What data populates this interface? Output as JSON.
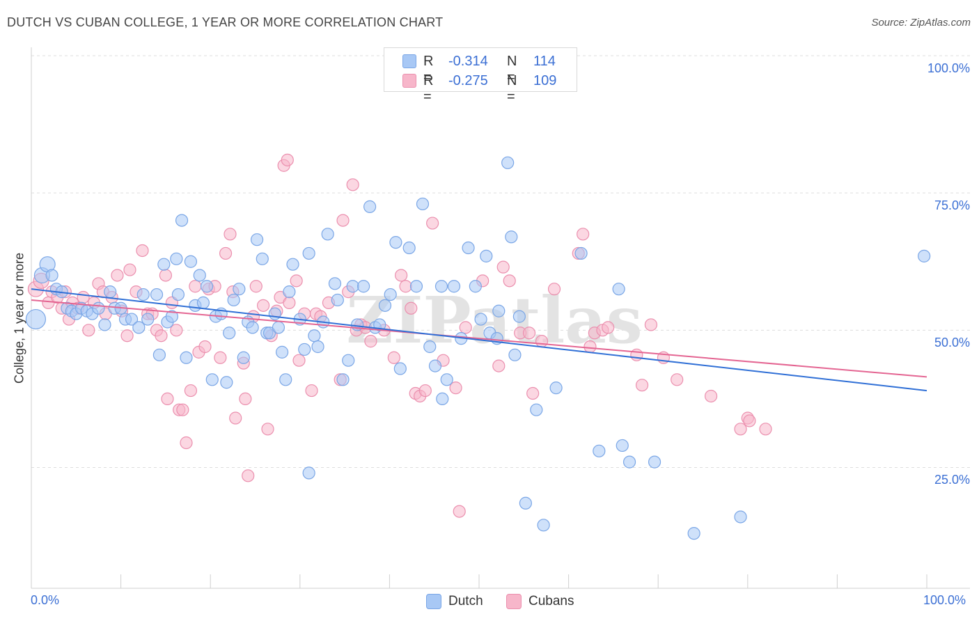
{
  "title": "DUTCH VS CUBAN COLLEGE, 1 YEAR OR MORE CORRELATION CHART",
  "source": "Source: ZipAtlas.com",
  "watermark": "ZIPatlas",
  "legend": {
    "rows": [
      {
        "r_label": "R =",
        "r_value": "-0.314",
        "n_label": "N =",
        "n_value": "114",
        "color": "#a8c8f5"
      },
      {
        "r_label": "R =",
        "r_value": "-0.275",
        "n_label": "N =",
        "n_value": "109",
        "color": "#f7b6ca"
      }
    ],
    "bottom": [
      {
        "label": "Dutch",
        "color": "#a8c8f5"
      },
      {
        "label": "Cubans",
        "color": "#f7b6ca"
      }
    ]
  },
  "colors": {
    "dutch_fill": "#a8c8f5",
    "dutch_stroke": "#7aa6e6",
    "dutch_line": "#2f6fd6",
    "cuban_fill": "#f7b6ca",
    "cuban_stroke": "#eb8fae",
    "cuban_line": "#e46592",
    "tick_text": "#3b6fd4",
    "grid": "#dddddd"
  },
  "chart_data": {
    "type": "scatter",
    "title": "DUTCH VS CUBAN COLLEGE, 1 YEAR OR MORE CORRELATION CHART",
    "xlabel": "",
    "ylabel": "College, 1 year or more",
    "xlim": [
      0,
      100
    ],
    "ylim": [
      3,
      100
    ],
    "x_tick_labels": [
      "0.0%",
      "100.0%"
    ],
    "y_ticks": [
      25,
      50,
      75,
      100
    ],
    "y_tick_labels": [
      "25.0%",
      "50.0%",
      "75.0%",
      "100.0%"
    ],
    "grid": "horizontal dashed",
    "legend_position": "top-center",
    "series": [
      {
        "name": "Dutch",
        "r": -0.314,
        "n": 114,
        "trend": {
          "x": [
            0,
            100
          ],
          "y": [
            57.5,
            39.0
          ]
        },
        "points": [
          [
            0.5,
            52,
            3
          ],
          [
            1.2,
            60,
            2
          ],
          [
            1.8,
            62,
            2
          ],
          [
            2.3,
            60,
            1
          ],
          [
            2.8,
            57.5,
            1
          ],
          [
            3.4,
            57,
            1
          ],
          [
            4,
            54,
            1
          ],
          [
            4.5,
            53.5,
            1
          ],
          [
            5,
            53,
            1
          ],
          [
            5.6,
            54,
            1
          ],
          [
            6.2,
            53.5,
            1
          ],
          [
            6.8,
            53,
            1
          ],
          [
            7.5,
            54,
            1
          ],
          [
            8.2,
            51,
            1
          ],
          [
            8.8,
            57,
            1
          ],
          [
            9.3,
            54,
            1
          ],
          [
            10,
            54,
            1
          ],
          [
            10.5,
            52,
            1
          ],
          [
            11.2,
            52,
            1
          ],
          [
            12,
            50.5,
            1
          ],
          [
            12.5,
            56.5,
            1
          ],
          [
            13,
            52,
            1
          ],
          [
            14,
            56.5,
            1
          ],
          [
            14.3,
            45.5,
            1
          ],
          [
            14.8,
            62,
            1
          ],
          [
            15.2,
            51.5,
            1
          ],
          [
            15.7,
            52.5,
            1
          ],
          [
            16.2,
            63,
            1
          ],
          [
            16.4,
            56.5,
            1
          ],
          [
            16.8,
            70,
            1
          ],
          [
            17.3,
            45,
            1
          ],
          [
            17.8,
            62.5,
            1
          ],
          [
            18.3,
            54.5,
            1
          ],
          [
            18.8,
            60,
            1
          ],
          [
            19.2,
            55,
            1
          ],
          [
            19.6,
            58,
            1
          ],
          [
            20.2,
            41,
            1
          ],
          [
            20.6,
            52.5,
            1
          ],
          [
            21.2,
            53,
            1
          ],
          [
            21.8,
            40.5,
            1
          ],
          [
            22.1,
            49.5,
            1
          ],
          [
            22.6,
            55.5,
            1
          ],
          [
            23.2,
            57.5,
            1
          ],
          [
            23.7,
            45,
            1
          ],
          [
            24.2,
            51.5,
            1
          ],
          [
            24.7,
            50.5,
            1
          ],
          [
            25.2,
            66.5,
            1
          ],
          [
            25.8,
            63,
            1
          ],
          [
            26.3,
            49.5,
            1
          ],
          [
            26.6,
            49.5,
            1
          ],
          [
            27.2,
            53,
            1
          ],
          [
            27.6,
            50.5,
            1
          ],
          [
            28.0,
            46,
            1
          ],
          [
            28.4,
            41,
            1
          ],
          [
            28.8,
            57,
            1
          ],
          [
            29.2,
            62,
            1
          ],
          [
            30.0,
            52,
            1
          ],
          [
            30.5,
            46.5,
            1
          ],
          [
            31.0,
            64,
            1
          ],
          [
            31.6,
            49,
            1
          ],
          [
            32.0,
            47,
            1
          ],
          [
            32.6,
            51.5,
            1
          ],
          [
            33.1,
            67.5,
            1
          ],
          [
            33.9,
            58.5,
            1
          ],
          [
            34.2,
            55.5,
            1
          ],
          [
            34.8,
            41,
            1
          ],
          [
            35.4,
            44.5,
            1
          ],
          [
            35.9,
            58,
            1
          ],
          [
            36.4,
            51,
            1
          ],
          [
            37.1,
            58,
            1
          ],
          [
            37.8,
            72.5,
            1
          ],
          [
            38.4,
            50.5,
            1
          ],
          [
            38.9,
            51,
            1
          ],
          [
            39.5,
            54.5,
            1
          ],
          [
            40.1,
            56.5,
            1
          ],
          [
            40.7,
            66,
            1
          ],
          [
            41.2,
            43,
            1
          ],
          [
            42.2,
            65,
            1
          ],
          [
            43.0,
            58,
            1
          ],
          [
            43.7,
            73,
            1
          ],
          [
            44.5,
            47,
            1
          ],
          [
            45.1,
            43.5,
            1
          ],
          [
            45.8,
            58,
            1
          ],
          [
            45.9,
            37.5,
            1
          ],
          [
            46.4,
            41,
            1
          ],
          [
            47.2,
            58,
            1
          ],
          [
            48.0,
            48.5,
            1
          ],
          [
            48.8,
            65,
            1
          ],
          [
            49.6,
            58,
            1
          ],
          [
            50.2,
            52,
            1
          ],
          [
            50.8,
            63.5,
            1
          ],
          [
            51.2,
            49.5,
            1
          ],
          [
            52.0,
            48.5,
            1
          ],
          [
            52.2,
            53.5,
            1
          ],
          [
            53.2,
            80.5,
            1
          ],
          [
            53.6,
            67,
            1
          ],
          [
            54.0,
            45.5,
            1
          ],
          [
            54.5,
            52.5,
            1
          ],
          [
            55.2,
            18.5,
            1
          ],
          [
            56.4,
            35.5,
            1
          ],
          [
            57.2,
            14.5,
            1
          ],
          [
            58.6,
            39.5,
            1
          ],
          [
            61.4,
            64,
            1
          ],
          [
            63.4,
            28,
            1
          ],
          [
            65.6,
            57.5,
            1
          ],
          [
            66.0,
            29,
            1
          ],
          [
            66.8,
            26,
            1
          ],
          [
            69.6,
            26,
            1
          ],
          [
            31.0,
            24,
            1
          ],
          [
            74.0,
            13,
            1
          ],
          [
            79.2,
            16,
            1
          ],
          [
            99.7,
            63.5,
            1
          ]
        ]
      },
      {
        "name": "Cubans",
        "r": -0.275,
        "n": 109,
        "trend": {
          "x": [
            0,
            100
          ],
          "y": [
            55.5,
            41.5
          ]
        },
        "points": [
          [
            0.5,
            57.5,
            2
          ],
          [
            1.1,
            59,
            2
          ],
          [
            1.9,
            55,
            1
          ],
          [
            2.3,
            57,
            1
          ],
          [
            2.9,
            56,
            1
          ],
          [
            3.4,
            54,
            1
          ],
          [
            3.8,
            57,
            1
          ],
          [
            4.2,
            52,
            1
          ],
          [
            4.6,
            55,
            1
          ],
          [
            5.2,
            54,
            1
          ],
          [
            5.8,
            56,
            1
          ],
          [
            6.4,
            50,
            1
          ],
          [
            7.0,
            55,
            1
          ],
          [
            7.5,
            58.5,
            1
          ],
          [
            8.0,
            57,
            1
          ],
          [
            8.3,
            53,
            1
          ],
          [
            9.0,
            56,
            1
          ],
          [
            9.6,
            60,
            1
          ],
          [
            10.1,
            53.5,
            1
          ],
          [
            10.7,
            49,
            1
          ],
          [
            11.0,
            61,
            1
          ],
          [
            11.7,
            57,
            1
          ],
          [
            12.4,
            64.5,
            1
          ],
          [
            13.0,
            53,
            1
          ],
          [
            13.5,
            53,
            1
          ],
          [
            14.0,
            50,
            1
          ],
          [
            14.5,
            49,
            1
          ],
          [
            15.0,
            60,
            1
          ],
          [
            15.2,
            37.5,
            1
          ],
          [
            15.7,
            55,
            1
          ],
          [
            16.2,
            50,
            1
          ],
          [
            16.5,
            35.5,
            1
          ],
          [
            16.9,
            35.5,
            1
          ],
          [
            17.3,
            29.5,
            1
          ],
          [
            17.8,
            39,
            1
          ],
          [
            18.3,
            58,
            1
          ],
          [
            18.7,
            46,
            1
          ],
          [
            19.4,
            47,
            1
          ],
          [
            19.8,
            57.5,
            1
          ],
          [
            20.5,
            58,
            1
          ],
          [
            21.1,
            45,
            1
          ],
          [
            21.7,
            64,
            1
          ],
          [
            22.2,
            67.5,
            1
          ],
          [
            22.5,
            57,
            1
          ],
          [
            22.8,
            34,
            1
          ],
          [
            23.7,
            44,
            1
          ],
          [
            23.9,
            37.5,
            1
          ],
          [
            24.2,
            23.5,
            1
          ],
          [
            24.8,
            52.5,
            1
          ],
          [
            25.1,
            58,
            1
          ],
          [
            25.9,
            54.5,
            1
          ],
          [
            26.4,
            32,
            1
          ],
          [
            26.8,
            49,
            1
          ],
          [
            27.4,
            53.5,
            1
          ],
          [
            27.8,
            56,
            1
          ],
          [
            28.2,
            80,
            1
          ],
          [
            28.6,
            81,
            1
          ],
          [
            28.8,
            55,
            1
          ],
          [
            29.6,
            59,
            1
          ],
          [
            29.9,
            44.5,
            1
          ],
          [
            30.5,
            53,
            1
          ],
          [
            31.3,
            39,
            1
          ],
          [
            31.8,
            53,
            1
          ],
          [
            32.3,
            52.5,
            1
          ],
          [
            33.2,
            55,
            1
          ],
          [
            34.5,
            41,
            1
          ],
          [
            34.8,
            70,
            1
          ],
          [
            35.4,
            57,
            1
          ],
          [
            35.9,
            76.5,
            1
          ],
          [
            36.3,
            50,
            1
          ],
          [
            36.8,
            51,
            1
          ],
          [
            37.3,
            50.5,
            1
          ],
          [
            37.9,
            48,
            1
          ],
          [
            39.4,
            50,
            1
          ],
          [
            40.5,
            45,
            1
          ],
          [
            41.3,
            60,
            1
          ],
          [
            41.8,
            58,
            1
          ],
          [
            42.4,
            54,
            1
          ],
          [
            42.9,
            38.5,
            1
          ],
          [
            43.4,
            38,
            1
          ],
          [
            44.0,
            39,
            1
          ],
          [
            44.8,
            69.5,
            1
          ],
          [
            46.0,
            44.5,
            1
          ],
          [
            47.4,
            39.5,
            1
          ],
          [
            47.8,
            17,
            1
          ],
          [
            48.5,
            50.5,
            1
          ],
          [
            50.4,
            59,
            1
          ],
          [
            52.2,
            43.5,
            1
          ],
          [
            52.7,
            61.5,
            1
          ],
          [
            53.4,
            59,
            1
          ],
          [
            54.6,
            49.5,
            1
          ],
          [
            55.6,
            49.5,
            1
          ],
          [
            56.0,
            38.5,
            1
          ],
          [
            57.0,
            48,
            1
          ],
          [
            58.4,
            57.5,
            1
          ],
          [
            61.1,
            64,
            1
          ],
          [
            61.6,
            67.5,
            1
          ],
          [
            62.4,
            47,
            1
          ],
          [
            62.9,
            49.5,
            1
          ],
          [
            63.8,
            50,
            1
          ],
          [
            64.4,
            50.5,
            1
          ],
          [
            67.6,
            45.5,
            1
          ],
          [
            68.2,
            40,
            1
          ],
          [
            69.2,
            51,
            1
          ],
          [
            70.6,
            45,
            1
          ],
          [
            72.1,
            41,
            1
          ],
          [
            75.9,
            38,
            1
          ],
          [
            79.2,
            32,
            1
          ],
          [
            80.0,
            34,
            1
          ],
          [
            80.2,
            33.5,
            1
          ],
          [
            82.0,
            32,
            1
          ]
        ]
      }
    ]
  }
}
